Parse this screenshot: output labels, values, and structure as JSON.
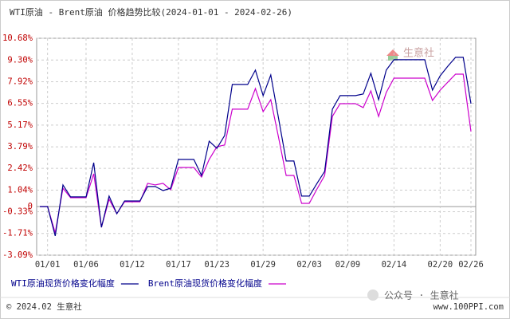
{
  "chart_data": {
    "type": "line",
    "title": "WTI原油 - Brent原油 价格趋势比较(2024-01-01 - 2024-02-26)",
    "categories": [
      null,
      "01/01",
      null,
      null,
      null,
      null,
      "01/06",
      null,
      null,
      null,
      null,
      null,
      "01/12",
      null,
      null,
      null,
      null,
      null,
      "01/17",
      null,
      null,
      null,
      null,
      "01/23",
      null,
      null,
      null,
      null,
      null,
      "01/29",
      null,
      null,
      null,
      null,
      null,
      "02/03",
      null,
      null,
      null,
      null,
      "02/09",
      null,
      null,
      null,
      null,
      null,
      "02/14",
      null,
      null,
      null,
      null,
      null,
      "02/20",
      null,
      null,
      null,
      "02/26"
    ],
    "series": [
      {
        "name": "WTI原油现货价格变化幅度",
        "color": "#00008b",
        "values": [
          0,
          0,
          -1.87,
          1.37,
          0.61,
          0.61,
          0.61,
          2.78,
          -1.32,
          0.66,
          -0.46,
          0.35,
          0.35,
          0.35,
          1.27,
          1.27,
          1.01,
          1.16,
          2.99,
          2.99,
          2.99,
          1.97,
          4.15,
          3.7,
          4.51,
          7.75,
          7.75,
          7.75,
          8.66,
          7.04,
          8.35,
          5.62,
          2.89,
          2.89,
          0.66,
          0.66,
          1.47,
          2.23,
          6.18,
          7.04,
          7.04,
          7.04,
          7.14,
          8.46,
          6.78,
          8.66,
          9.32,
          9.32,
          9.32,
          9.32,
          9.32,
          7.39,
          8.3,
          8.91,
          9.47,
          9.47,
          6.53
        ]
      },
      {
        "name": "Brent原油现货价格变化幅度",
        "color": "#cc00cc",
        "values": [
          0,
          0,
          -1.67,
          1.16,
          0.56,
          0.56,
          0.56,
          2.08,
          -1.32,
          0.46,
          -0.46,
          0.3,
          0.3,
          0.3,
          1.47,
          1.37,
          1.47,
          1.06,
          2.48,
          2.48,
          2.48,
          1.87,
          2.99,
          3.8,
          3.9,
          6.18,
          6.18,
          6.18,
          7.49,
          6.02,
          6.78,
          4.4,
          1.97,
          1.97,
          0.2,
          0.2,
          1.11,
          1.97,
          5.72,
          6.53,
          6.53,
          6.53,
          6.28,
          7.34,
          5.72,
          7.24,
          8.15,
          8.15,
          8.15,
          8.15,
          8.15,
          6.73,
          7.39,
          7.9,
          8.4,
          8.4,
          4.76
        ]
      }
    ],
    "ylim": [
      -3.09,
      10.68
    ],
    "yticks": [
      {
        "value": 10.68,
        "label": "10.68%"
      },
      {
        "value": 9.3,
        "label": "9.30%"
      },
      {
        "value": 7.92,
        "label": "7.92%"
      },
      {
        "value": 6.55,
        "label": "6.55%"
      },
      {
        "value": 5.17,
        "label": "5.17%"
      },
      {
        "value": 3.79,
        "label": "3.79%"
      },
      {
        "value": 2.42,
        "label": "2.42%"
      },
      {
        "value": 1.04,
        "label": "1.04%"
      },
      0,
      {
        "value": -0.33,
        "label": "-0.33%"
      },
      {
        "value": -1.71,
        "label": "-1.71%"
      },
      {
        "value": -3.09,
        "label": "-3.09%"
      }
    ],
    "grid": true
  },
  "page": {
    "logo": "生意社",
    "copyright": "© 2024.02 生意社",
    "watermark": "公众号 · 生意社",
    "website": "www.100PPI.com"
  }
}
